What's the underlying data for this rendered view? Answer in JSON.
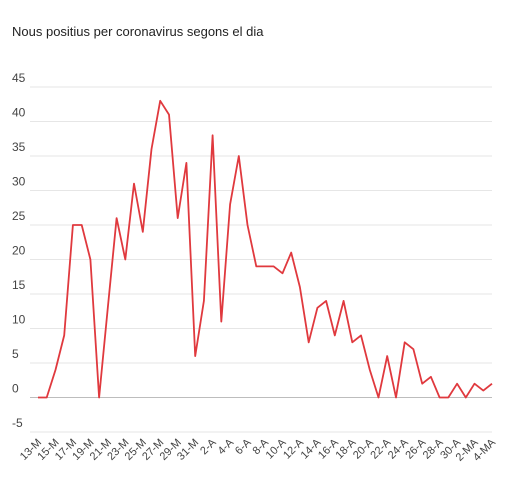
{
  "chart_data": {
    "type": "line",
    "title": "Nous positius per coronavirus segons el dia",
    "xlabel": "",
    "ylabel": "",
    "ylim": [
      -5,
      45
    ],
    "y_ticks": [
      45,
      40,
      35,
      30,
      25,
      20,
      15,
      10,
      5,
      0,
      -5
    ],
    "grid": true,
    "legend": "none",
    "line_color": "#e0393e",
    "x_tick_labels": [
      "13-M",
      "15-M",
      "17-M",
      "19-M",
      "21-M",
      "23-M",
      "25-M",
      "27-M",
      "29-M",
      "31-M",
      "2-A",
      "4-A",
      "6-A",
      "8-A",
      "10-A",
      "12-A",
      "14-A",
      "16-A",
      "18-A",
      "20-A",
      "22-A",
      "24-A",
      "26-A",
      "28-A",
      "30-A",
      "2-MA",
      "4-MA"
    ],
    "categories": [
      "13-M",
      "14-M",
      "15-M",
      "16-M",
      "17-M",
      "18-M",
      "19-M",
      "20-M",
      "21-M",
      "22-M",
      "23-M",
      "24-M",
      "25-M",
      "26-M",
      "27-M",
      "28-M",
      "29-M",
      "30-M",
      "31-M",
      "1-A",
      "2-A",
      "3-A",
      "4-A",
      "5-A",
      "6-A",
      "7-A",
      "8-A",
      "9-A",
      "10-A",
      "11-A",
      "12-A",
      "13-A",
      "14-A",
      "15-A",
      "16-A",
      "17-A",
      "18-A",
      "19-A",
      "20-A",
      "21-A",
      "22-A",
      "23-A",
      "24-A",
      "25-A",
      "26-A",
      "27-A",
      "28-A",
      "29-A",
      "30-A",
      "1-MA",
      "2-MA",
      "3-MA",
      "4-MA"
    ],
    "values": [
      0,
      0,
      4,
      9,
      25,
      25,
      20,
      0,
      13,
      26,
      20,
      31,
      24,
      36,
      43,
      41,
      26,
      34,
      6,
      14,
      38,
      11,
      28,
      35,
      25,
      19,
      19,
      19,
      18,
      21,
      16,
      8,
      13,
      14,
      9,
      14,
      8,
      9,
      4,
      0,
      6,
      0,
      8,
      7,
      2,
      3,
      0,
      0,
      2,
      0,
      2,
      1,
      2
    ]
  }
}
